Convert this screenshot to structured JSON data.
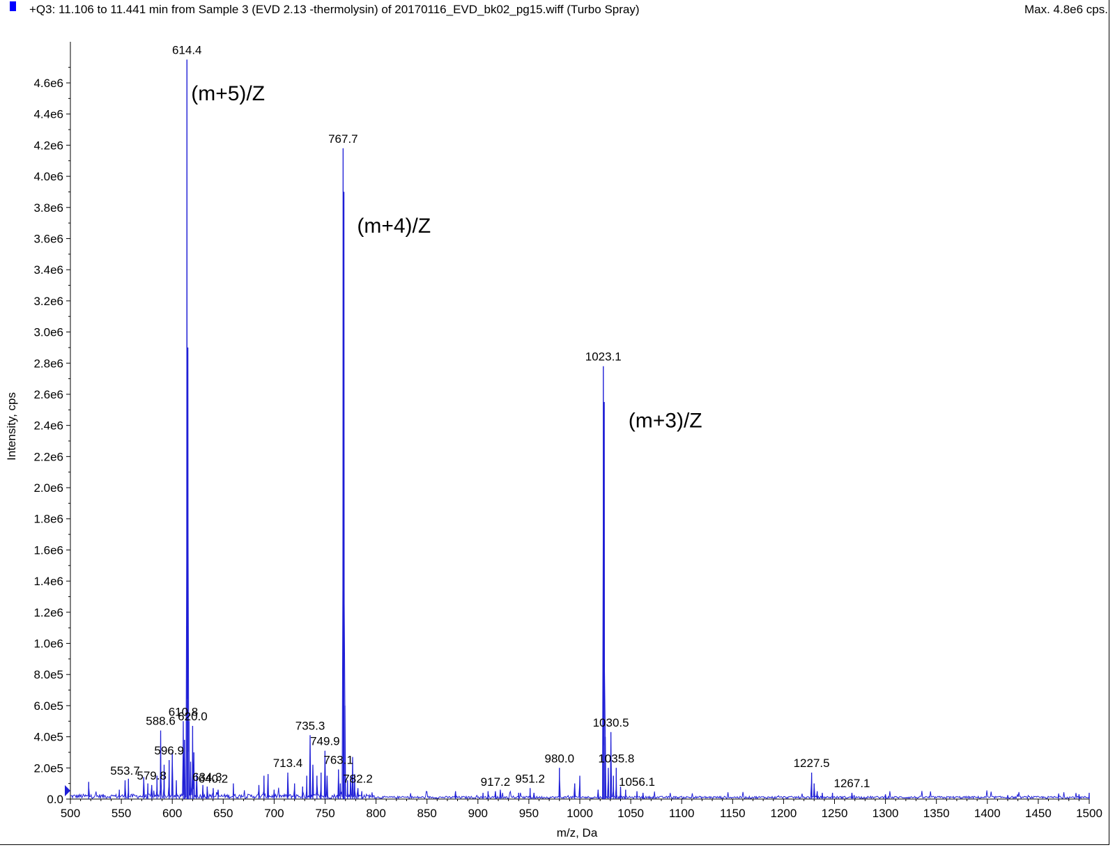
{
  "header": {
    "title": "+Q3: 11.106 to 11.441 min from Sample 3 (EVD 2.13 -thermolysin) of 20170116_EVD_bk02_pg15.wiff (Turbo Spray)",
    "max_label": "Max. 4.8e6 cps."
  },
  "colors": {
    "trace": "#1f1fd6",
    "axis": "#000000",
    "legend_swatch": "#0000ff"
  },
  "chart_data": {
    "type": "line",
    "xlabel": "m/z, Da",
    "ylabel": "Intensity, cps",
    "xlim": [
      500,
      1500
    ],
    "ylim": [
      0,
      4800000
    ],
    "x_ticks": [
      500,
      550,
      600,
      650,
      700,
      750,
      800,
      850,
      900,
      950,
      1000,
      1050,
      1100,
      1150,
      1200,
      1250,
      1300,
      1350,
      1400,
      1450,
      1500
    ],
    "y_ticks": [
      {
        "value": 0,
        "label": "0.0"
      },
      {
        "value": 200000,
        "label": "2.0e5"
      },
      {
        "value": 400000,
        "label": "4.0e5"
      },
      {
        "value": 600000,
        "label": "6.0e5"
      },
      {
        "value": 800000,
        "label": "8.0e5"
      },
      {
        "value": 1000000,
        "label": "1.0e6"
      },
      {
        "value": 1200000,
        "label": "1.2e6"
      },
      {
        "value": 1400000,
        "label": "1.4e6"
      },
      {
        "value": 1600000,
        "label": "1.6e6"
      },
      {
        "value": 1800000,
        "label": "1.8e6"
      },
      {
        "value": 2000000,
        "label": "2.0e6"
      },
      {
        "value": 2200000,
        "label": "2.2e6"
      },
      {
        "value": 2400000,
        "label": "2.4e6"
      },
      {
        "value": 2600000,
        "label": "2.6e6"
      },
      {
        "value": 2800000,
        "label": "2.8e6"
      },
      {
        "value": 3000000,
        "label": "3.0e6"
      },
      {
        "value": 3200000,
        "label": "3.2e6"
      },
      {
        "value": 3400000,
        "label": "3.4e6"
      },
      {
        "value": 3600000,
        "label": "3.6e6"
      },
      {
        "value": 3800000,
        "label": "3.8e6"
      },
      {
        "value": 4000000,
        "label": "4.0e6"
      },
      {
        "value": 4200000,
        "label": "4.2e6"
      },
      {
        "value": 4400000,
        "label": "4.4e6"
      },
      {
        "value": 4600000,
        "label": "4.6e6"
      }
    ],
    "peaks": [
      [
        518,
        110000
      ],
      [
        548,
        60000
      ],
      [
        553.7,
        120000
      ],
      [
        557,
        130000
      ],
      [
        572,
        140000
      ],
      [
        576,
        100000
      ],
      [
        579.8,
        90000
      ],
      [
        585,
        150000
      ],
      [
        588.6,
        440000
      ],
      [
        592,
        220000
      ],
      [
        596.9,
        250000
      ],
      [
        600,
        300000
      ],
      [
        604,
        120000
      ],
      [
        610.8,
        500000
      ],
      [
        612,
        380000
      ],
      [
        614.4,
        4750000
      ],
      [
        615.3,
        2900000
      ],
      [
        616.4,
        500000
      ],
      [
        618,
        240000
      ],
      [
        620.0,
        470000
      ],
      [
        621.2,
        300000
      ],
      [
        624,
        160000
      ],
      [
        630,
        90000
      ],
      [
        634.3,
        80000
      ],
      [
        640.2,
        70000
      ],
      [
        645,
        60000
      ],
      [
        660,
        100000
      ],
      [
        685,
        90000
      ],
      [
        690,
        150000
      ],
      [
        694,
        160000
      ],
      [
        700,
        60000
      ],
      [
        713.4,
        170000
      ],
      [
        720,
        100000
      ],
      [
        728,
        80000
      ],
      [
        732,
        150000
      ],
      [
        735.3,
        410000
      ],
      [
        738,
        220000
      ],
      [
        742,
        150000
      ],
      [
        746,
        170000
      ],
      [
        749.9,
        310000
      ],
      [
        752,
        150000
      ],
      [
        763.1,
        190000
      ],
      [
        765,
        100000
      ],
      [
        767.7,
        4180000
      ],
      [
        768.5,
        3900000
      ],
      [
        769.5,
        600000
      ],
      [
        772,
        120000
      ],
      [
        775,
        150000
      ],
      [
        777,
        270000
      ],
      [
        779,
        160000
      ],
      [
        782.2,
        70000
      ],
      [
        786,
        50000
      ],
      [
        878,
        50000
      ],
      [
        905,
        40000
      ],
      [
        910,
        50000
      ],
      [
        917.2,
        50000
      ],
      [
        922,
        60000
      ],
      [
        940,
        40000
      ],
      [
        951.2,
        70000
      ],
      [
        955,
        40000
      ],
      [
        980.0,
        200000
      ],
      [
        995,
        100000
      ],
      [
        1000,
        150000
      ],
      [
        1018,
        60000
      ],
      [
        1023.1,
        2780000
      ],
      [
        1024,
        2550000
      ],
      [
        1025,
        400000
      ],
      [
        1028,
        200000
      ],
      [
        1030.5,
        430000
      ],
      [
        1033,
        150000
      ],
      [
        1035.8,
        200000
      ],
      [
        1040,
        80000
      ],
      [
        1045,
        60000
      ],
      [
        1056.1,
        50000
      ],
      [
        1062,
        40000
      ],
      [
        1227.5,
        170000
      ],
      [
        1230,
        100000
      ],
      [
        1233,
        50000
      ],
      [
        1238,
        40000
      ],
      [
        1248,
        40000
      ],
      [
        1267.1,
        40000
      ],
      [
        1300,
        30000
      ],
      [
        1420,
        25000
      ],
      [
        1470,
        35000
      ],
      [
        1490,
        30000
      ],
      [
        1500,
        40000
      ]
    ],
    "peak_labels": [
      {
        "x": 614.4,
        "y": 4750000,
        "text": "614.4"
      },
      {
        "x": 767.7,
        "y": 4180000,
        "text": "767.7"
      },
      {
        "x": 1023.1,
        "y": 2780000,
        "text": "1023.1"
      },
      {
        "x": 553.7,
        "y": 120000,
        "text": "553.7"
      },
      {
        "x": 579.8,
        "y": 90000,
        "text": "579.8"
      },
      {
        "x": 588.6,
        "y": 440000,
        "text": "588.6"
      },
      {
        "x": 596.9,
        "y": 250000,
        "text": "596.9"
      },
      {
        "x": 610.8,
        "y": 500000,
        "text": "610.8"
      },
      {
        "x": 620.0,
        "y": 470000,
        "text": "620.0"
      },
      {
        "x": 634.3,
        "y": 80000,
        "text": "634.3"
      },
      {
        "x": 640.2,
        "y": 70000,
        "text": "640.2"
      },
      {
        "x": 713.4,
        "y": 170000,
        "text": "713.4"
      },
      {
        "x": 735.3,
        "y": 410000,
        "text": "735.3"
      },
      {
        "x": 749.9,
        "y": 310000,
        "text": "749.9"
      },
      {
        "x": 763.1,
        "y": 190000,
        "text": "763.1"
      },
      {
        "x": 782.2,
        "y": 70000,
        "text": "782.2"
      },
      {
        "x": 917.2,
        "y": 50000,
        "text": "917.2"
      },
      {
        "x": 951.2,
        "y": 70000,
        "text": "951.2"
      },
      {
        "x": 980.0,
        "y": 200000,
        "text": "980.0"
      },
      {
        "x": 1030.5,
        "y": 430000,
        "text": "1030.5"
      },
      {
        "x": 1035.8,
        "y": 200000,
        "text": "1035.8"
      },
      {
        "x": 1056.1,
        "y": 50000,
        "text": "1056.1"
      },
      {
        "x": 1227.5,
        "y": 170000,
        "text": "1227.5"
      },
      {
        "x": 1267.1,
        "y": 40000,
        "text": "1267.1"
      }
    ],
    "annotations": [
      {
        "x": 614.4,
        "y": 4550000,
        "text": "(m+5)/Z"
      },
      {
        "x": 767.7,
        "y": 3700000,
        "text": "(m+4)/Z"
      },
      {
        "x": 1023.1,
        "y": 2450000,
        "text": "(m+3)/Z"
      }
    ]
  }
}
